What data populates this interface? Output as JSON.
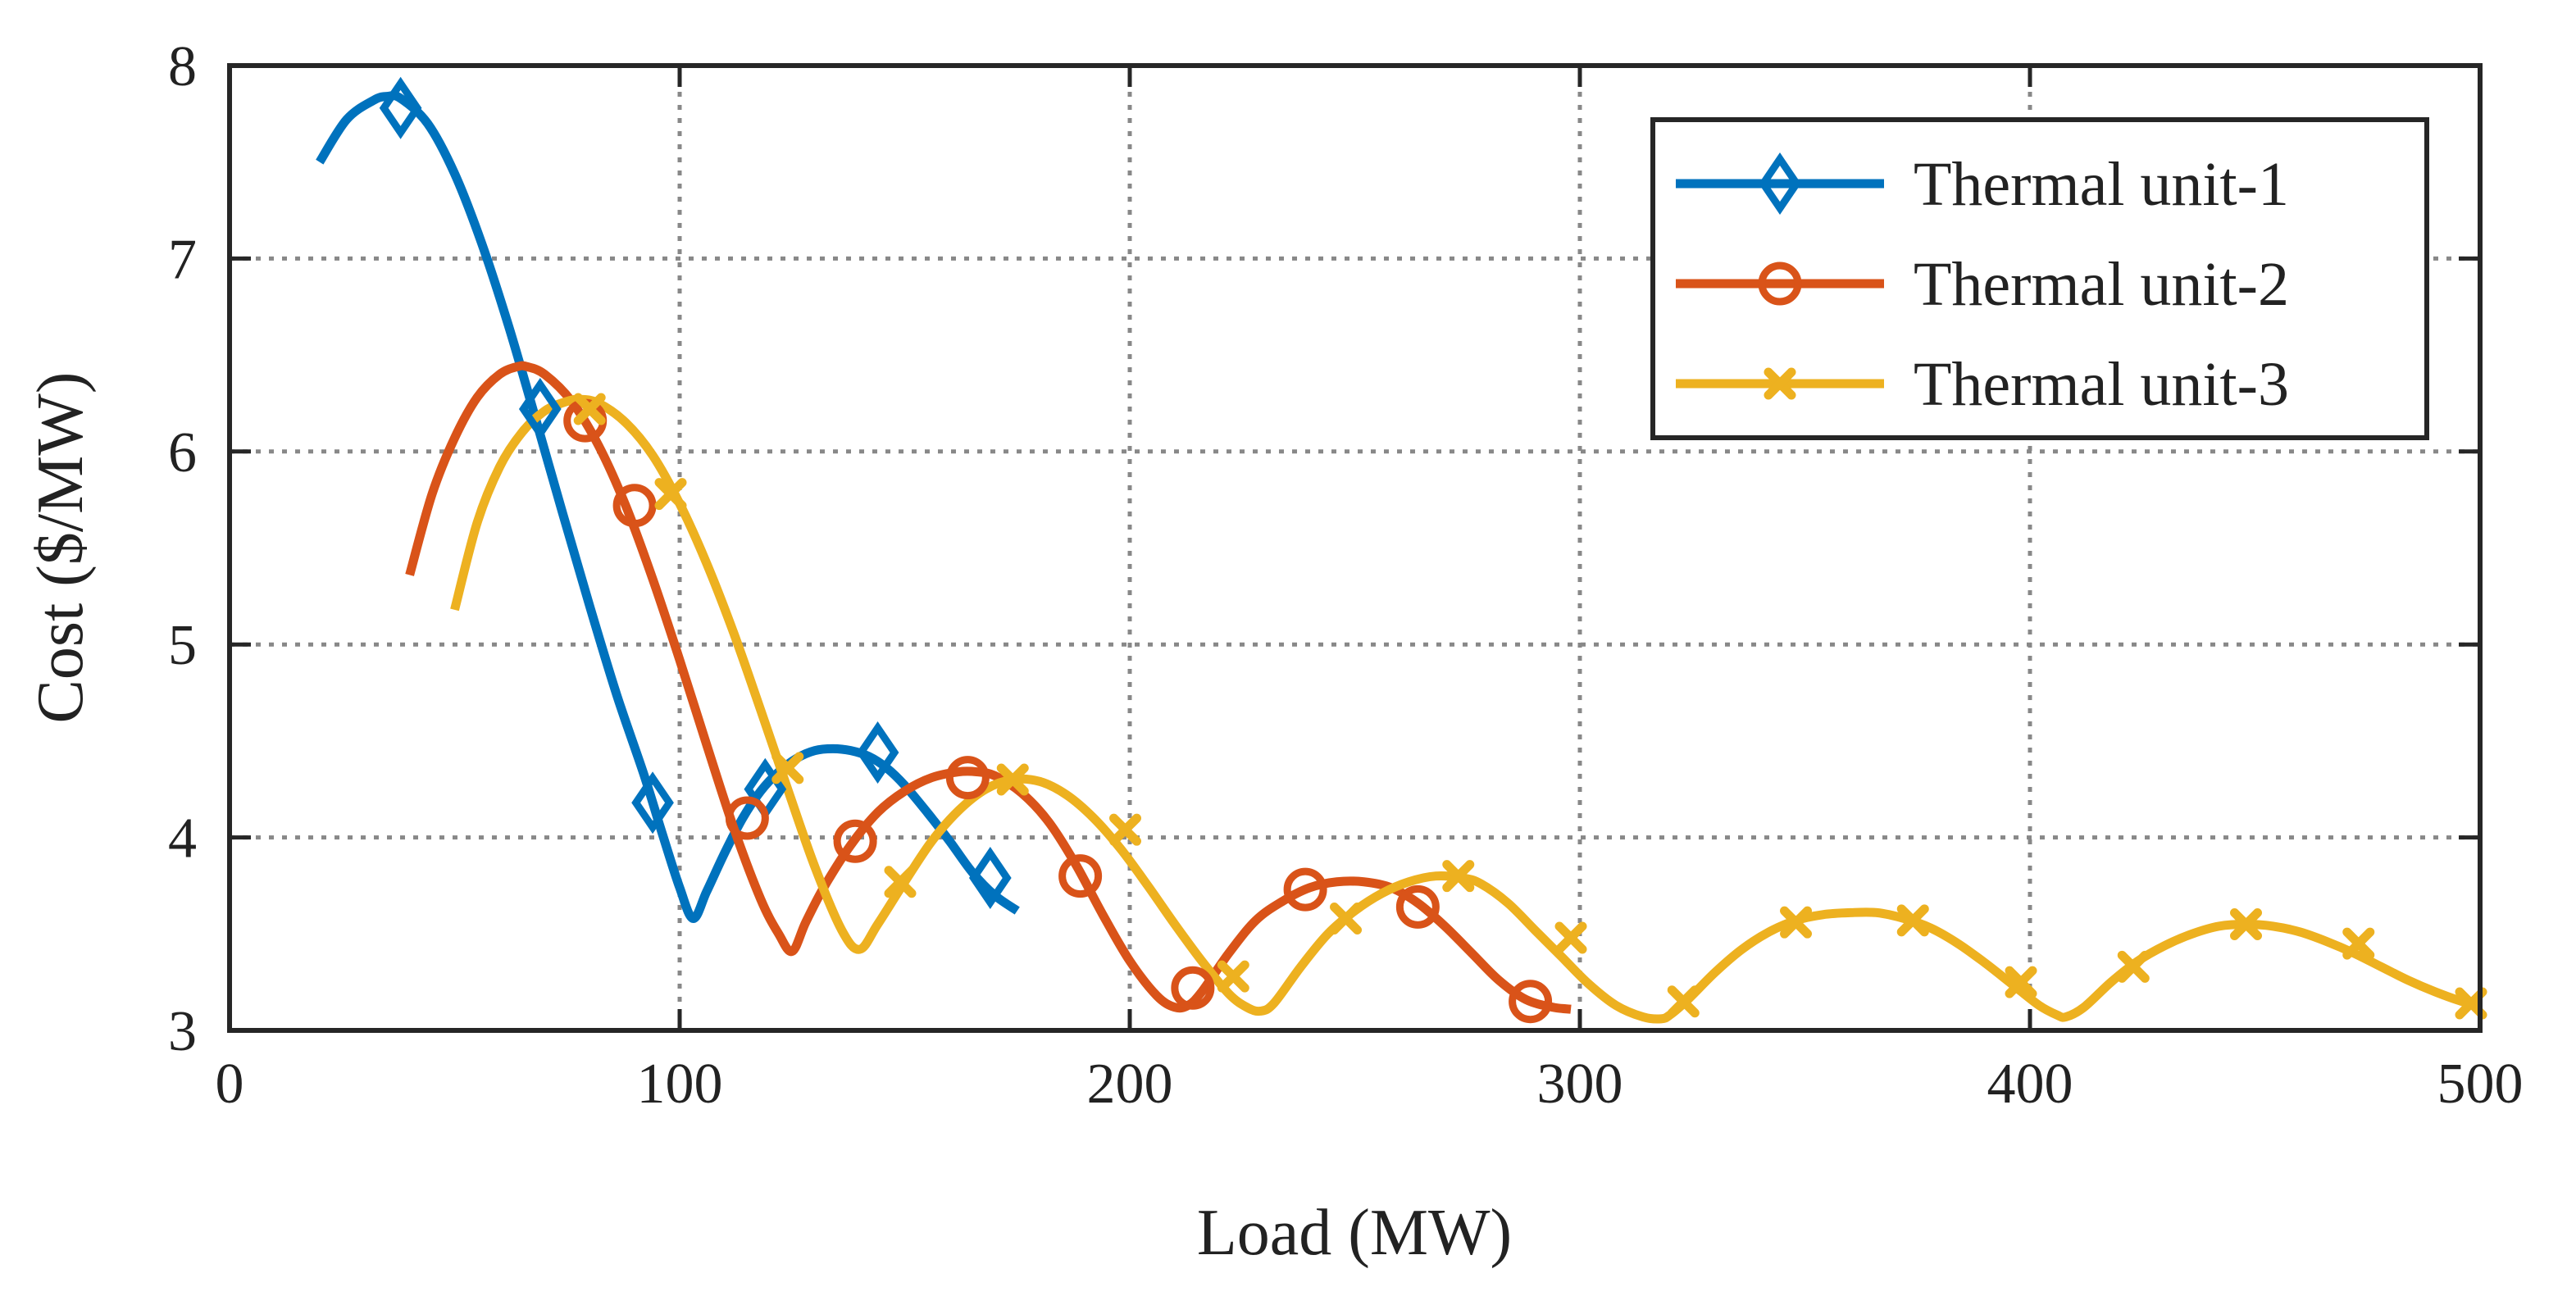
{
  "chart_data": {
    "type": "line",
    "title": "",
    "xlabel": "Load (MW)",
    "ylabel": "Cost ($/MW)",
    "xlim": [
      0,
      500
    ],
    "ylim": [
      3,
      8
    ],
    "xticks": [
      0,
      100,
      200,
      300,
      400,
      500
    ],
    "yticks": [
      3,
      4,
      5,
      6,
      7,
      8
    ],
    "grid": true,
    "legend_position": "top-right",
    "series": [
      {
        "name": "Thermal unit-1",
        "color": "#0072BD",
        "marker": "diamond",
        "x": [
          20,
          26,
          32,
          35,
          38,
          44,
          50,
          56,
          62,
          68,
          74,
          80,
          86,
          92,
          96,
          100,
          103,
          106,
          110,
          114,
          118,
          122,
          126,
          130,
          134,
          138,
          142,
          146,
          150,
          155,
          160,
          165,
          170,
          175
        ],
        "y": [
          7.5,
          7.72,
          7.82,
          7.84,
          7.83,
          7.7,
          7.44,
          7.08,
          6.65,
          6.17,
          5.68,
          5.2,
          4.74,
          4.33,
          4.03,
          3.74,
          3.58,
          3.72,
          3.92,
          4.1,
          4.24,
          4.34,
          4.41,
          4.45,
          4.46,
          4.45,
          4.42,
          4.36,
          4.27,
          4.13,
          3.98,
          3.82,
          3.7,
          3.62
        ],
        "marker_x": [
          38,
          69,
          94,
          119,
          144,
          169
        ],
        "marker_y": [
          7.78,
          6.22,
          4.18,
          4.25,
          4.44,
          3.79
        ]
      },
      {
        "name": "Thermal unit-2",
        "color": "#D95319",
        "marker": "circle",
        "x": [
          40,
          45,
          50,
          55,
          60,
          64,
          66,
          70,
          76,
          82,
          88,
          94,
          100,
          106,
          112,
          118,
          122,
          125,
          128,
          132,
          138,
          144,
          150,
          156,
          162,
          166,
          170,
          176,
          182,
          188,
          194,
          200,
          206,
          210,
          213,
          216,
          222,
          228,
          234,
          240,
          246,
          252,
          258,
          264,
          270,
          276,
          282,
          288,
          294,
          298
        ],
        "y": [
          5.36,
          5.78,
          6.07,
          6.28,
          6.4,
          6.44,
          6.44,
          6.4,
          6.26,
          6.03,
          5.72,
          5.34,
          4.92,
          4.48,
          4.05,
          3.68,
          3.5,
          3.41,
          3.56,
          3.74,
          3.96,
          4.13,
          4.24,
          4.31,
          4.34,
          4.34,
          4.32,
          4.23,
          4.08,
          3.86,
          3.6,
          3.36,
          3.18,
          3.12,
          3.13,
          3.2,
          3.4,
          3.57,
          3.67,
          3.74,
          3.77,
          3.77,
          3.74,
          3.66,
          3.54,
          3.4,
          3.26,
          3.16,
          3.12,
          3.11
        ],
        "marker_x": [
          79,
          90,
          115,
          139,
          164,
          189,
          214,
          239,
          264,
          289
        ],
        "marker_y": [
          6.16,
          5.72,
          4.1,
          3.98,
          4.31,
          3.8,
          3.22,
          3.73,
          3.64,
          3.15
        ]
      },
      {
        "name": "Thermal unit-3",
        "color": "#EDB120",
        "marker": "cross",
        "x": [
          50,
          55,
          60,
          65,
          70,
          75,
          78,
          82,
          88,
          94,
          100,
          106,
          112,
          118,
          124,
          130,
          136,
          140,
          144,
          150,
          156,
          162,
          168,
          174,
          180,
          186,
          192,
          198,
          204,
          210,
          216,
          222,
          226,
          229,
          232,
          238,
          244,
          250,
          256,
          262,
          268,
          274,
          278,
          284,
          290,
          296,
          302,
          308,
          314,
          318,
          320,
          324,
          330,
          336,
          342,
          348,
          354,
          360,
          366,
          372,
          378,
          384,
          390,
          396,
          402,
          406,
          408,
          412,
          418,
          424,
          430,
          436,
          442,
          448,
          454,
          460,
          466,
          472,
          478,
          484,
          490,
          496,
          500
        ],
        "y": [
          5.18,
          5.63,
          5.92,
          6.1,
          6.21,
          6.26,
          6.27,
          6.25,
          6.15,
          5.98,
          5.73,
          5.42,
          5.06,
          4.66,
          4.25,
          3.85,
          3.52,
          3.42,
          3.55,
          3.77,
          3.98,
          4.14,
          4.25,
          4.3,
          4.29,
          4.22,
          4.1,
          3.94,
          3.75,
          3.55,
          3.36,
          3.19,
          3.12,
          3.1,
          3.14,
          3.33,
          3.5,
          3.62,
          3.71,
          3.77,
          3.8,
          3.79,
          3.76,
          3.66,
          3.52,
          3.38,
          3.24,
          3.13,
          3.07,
          3.06,
          3.08,
          3.16,
          3.3,
          3.42,
          3.51,
          3.57,
          3.6,
          3.61,
          3.61,
          3.58,
          3.53,
          3.45,
          3.35,
          3.24,
          3.13,
          3.08,
          3.07,
          3.12,
          3.25,
          3.36,
          3.44,
          3.5,
          3.54,
          3.55,
          3.54,
          3.51,
          3.46,
          3.4,
          3.33,
          3.26,
          3.2,
          3.15,
          3.13
        ],
        "marker_x": [
          80,
          98,
          124,
          149,
          174,
          199,
          223,
          248,
          273,
          298,
          323,
          348,
          374,
          398,
          423,
          448,
          473,
          498
        ],
        "marker_y": [
          6.22,
          5.78,
          4.36,
          3.77,
          4.3,
          4.04,
          3.28,
          3.58,
          3.8,
          3.48,
          3.15,
          3.56,
          3.57,
          3.25,
          3.33,
          3.55,
          3.45,
          3.14
        ]
      }
    ]
  }
}
